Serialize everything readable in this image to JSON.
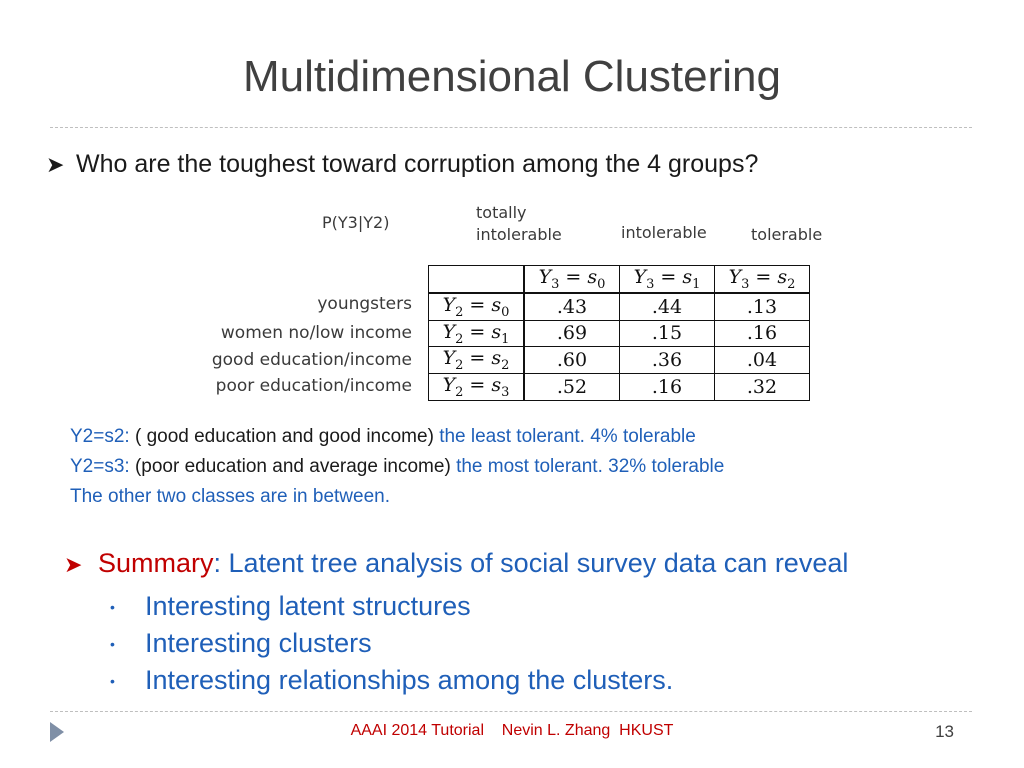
{
  "slide": {
    "title": "Multidimensional Clustering",
    "bullet_main": "Who are the toughest toward corruption among the 4 groups?",
    "figure": {
      "caption": "P(Y3|Y2)",
      "col_labels": [
        "totally\nintolerable",
        "intolerable",
        "tolerable"
      ],
      "row_labels": [
        "youngsters",
        "women no/low income",
        "good education/income",
        "poor education/income"
      ],
      "header_cells": [
        {
          "var": "Y",
          "idx": "3",
          "state": "s",
          "sidx": "0"
        },
        {
          "var": "Y",
          "idx": "3",
          "state": "s",
          "sidx": "1"
        },
        {
          "var": "Y",
          "idx": "3",
          "state": "s",
          "sidx": "2"
        }
      ],
      "rows": [
        {
          "var": "Y",
          "idx": "2",
          "state": "s",
          "sidx": "0",
          "values": [
            ".43",
            ".44",
            ".13"
          ]
        },
        {
          "var": "Y",
          "idx": "2",
          "state": "s",
          "sidx": "1",
          "values": [
            ".69",
            ".15",
            ".16"
          ]
        },
        {
          "var": "Y",
          "idx": "2",
          "state": "s",
          "sidx": "2",
          "values": [
            ".60",
            ".36",
            ".04"
          ]
        },
        {
          "var": "Y",
          "idx": "2",
          "state": "s",
          "sidx": "3",
          "values": [
            ".52",
            ".16",
            ".32"
          ]
        }
      ]
    },
    "notes": [
      {
        "key": "Y2=s2:",
        "desc": " ( good education and good income) ",
        "result": "the least tolerant. 4% tolerable"
      },
      {
        "key": "Y2=s3:",
        "desc": " (poor education and average income) ",
        "result": "the most tolerant. 32% tolerable"
      },
      {
        "key": "The other two classes are in between.",
        "desc": "",
        "result": ""
      }
    ],
    "summary": {
      "label": "Summary",
      "text": ":  Latent tree analysis of social survey data can reveal",
      "items": [
        "Interesting latent structures",
        "Interesting clusters",
        "Interesting relationships among the clusters."
      ]
    },
    "footer": {
      "left": "AAAI 2014 Tutorial",
      "right": "Nevin L. Zhang  HKUST",
      "page": "13"
    }
  }
}
